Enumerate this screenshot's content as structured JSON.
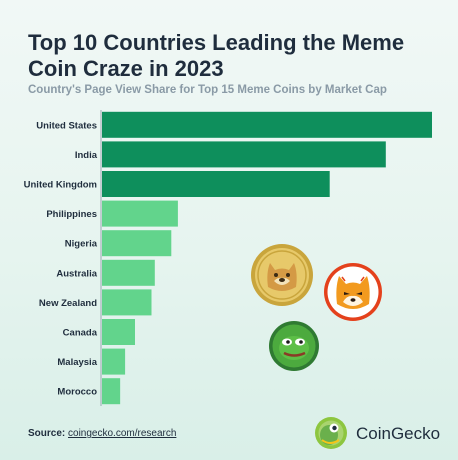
{
  "title": "Top 10 Countries Leading the Meme Coin Craze in 2023",
  "subtitle": "Country's Page View Share for Top 15 Meme Coins by Market Cap",
  "source_label": "Source:",
  "source_link": "coingecko.com/research",
  "brand": "CoinGecko",
  "colors": {
    "dark_bar": "#0e8f5c",
    "light_bar": "#62d48c",
    "axis": "#9aa8b2"
  },
  "icons": [
    "doge-coin-icon",
    "shiba-inu-coin-icon",
    "pepe-coin-icon",
    "coingecko-logo-icon"
  ],
  "chart_data": {
    "type": "bar",
    "orientation": "horizontal",
    "categories": [
      "United States",
      "India",
      "United Kingdom",
      "Philippines",
      "Nigeria",
      "Australia",
      "New Zealand",
      "Canada",
      "Malaysia",
      "Morocco"
    ],
    "values": [
      100,
      86,
      69,
      23,
      21,
      16,
      15,
      10,
      7,
      5.5
    ],
    "highlight_top": 3,
    "xlim": [
      0,
      100
    ],
    "grid": false,
    "legend": "none"
  }
}
